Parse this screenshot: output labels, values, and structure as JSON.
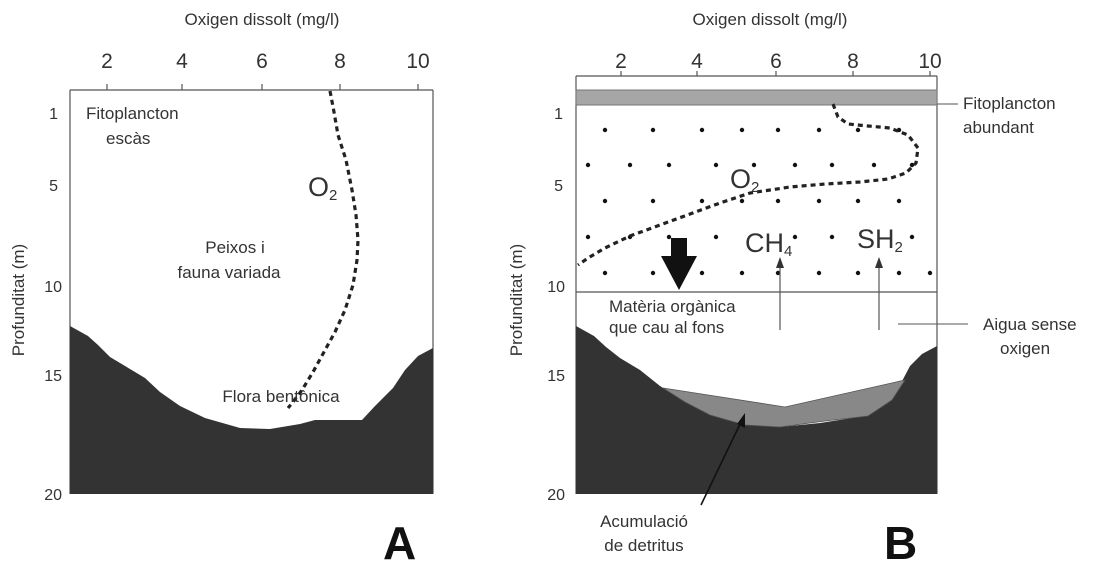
{
  "panel_a": {
    "x_axis_title": "Oxigen dissolt (mg/l)",
    "x_ticks": [
      "2",
      "4",
      "6",
      "8",
      "10"
    ],
    "y_axis_title": "Profunditat (m)",
    "y_ticks": [
      "1",
      "5",
      "10",
      "15",
      "20"
    ],
    "labels": {
      "fito_line1": "Fitoplancton",
      "fito_line2": "escàs",
      "o2_main": "O",
      "o2_sub": "2",
      "fauna_line1": "Peixos i",
      "fauna_line2": "fauna variada",
      "flora": "Flora bentònica"
    },
    "panel_letter": "A"
  },
  "panel_b": {
    "x_axis_title": "Oxigen dissolt (mg/l)",
    "x_ticks": [
      "2",
      "4",
      "6",
      "8",
      "10"
    ],
    "y_axis_title": "Profunditat (m)",
    "y_ticks": [
      "1",
      "5",
      "10",
      "15",
      "20"
    ],
    "labels": {
      "fito_line1": "Fitoplancton",
      "fito_line2": "abundant",
      "o2_main": "O",
      "o2_sub": "2",
      "ch4_main": "CH",
      "ch4_sub": "4",
      "sh2_main": "SH",
      "sh2_sub": "2",
      "materia_line1": "Matèria orgànica",
      "materia_line2": "que cau al fons",
      "aigua_line1": "Aigua sense",
      "aigua_line2": "oxigen",
      "acum_line1": "Acumulació",
      "acum_line2": "de detritus"
    },
    "panel_letter": "B"
  },
  "colors": {
    "sediment": "#333333",
    "detritus": "#888888",
    "surface_bar": "#a6a6a6",
    "axis": "#555555"
  }
}
